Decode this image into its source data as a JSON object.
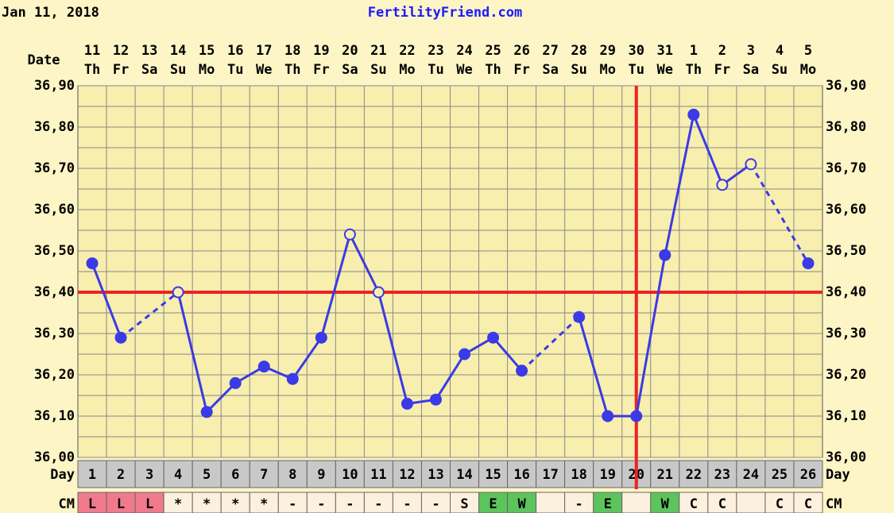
{
  "chart_data": {
    "type": "line",
    "header_date": "Jan 11, 2018",
    "site": "FertilityFriend.com",
    "date_label": "Date",
    "day_label": "Day",
    "cm_label": "CM",
    "dates": [
      "11",
      "12",
      "13",
      "14",
      "15",
      "16",
      "17",
      "18",
      "19",
      "20",
      "21",
      "22",
      "23",
      "24",
      "25",
      "26",
      "27",
      "28",
      "29",
      "30",
      "31",
      "1",
      "2",
      "3",
      "4",
      "5"
    ],
    "weekdays": [
      "Th",
      "Fr",
      "Sa",
      "Su",
      "Mo",
      "Tu",
      "We",
      "Th",
      "Fr",
      "Sa",
      "Su",
      "Mo",
      "Tu",
      "We",
      "Th",
      "Fr",
      "Sa",
      "Su",
      "Mo",
      "Tu",
      "We",
      "Th",
      "Fr",
      "Sa",
      "Su",
      "Mo"
    ],
    "days": [
      1,
      2,
      3,
      4,
      5,
      6,
      7,
      8,
      9,
      10,
      11,
      12,
      13,
      14,
      15,
      16,
      17,
      18,
      19,
      20,
      21,
      22,
      23,
      24,
      25,
      26
    ],
    "cm": [
      "L",
      "L",
      "L",
      "*",
      "*",
      "*",
      "*",
      "-",
      "-",
      "-",
      "-",
      "-",
      "-",
      "S",
      "E",
      "W",
      null,
      "-",
      "E",
      null,
      "W",
      "C",
      "C",
      null,
      "C",
      "C"
    ],
    "cm_colors": {
      "L": "#f07a8c",
      "E": "#5dc35d",
      "W": "#5dc35d"
    },
    "cm_default_color": "#fcf1de",
    "series": [
      {
        "color": "#3a3ae6",
        "values": [
          36.47,
          36.29,
          null,
          36.4,
          36.11,
          36.18,
          36.22,
          36.19,
          36.29,
          36.54,
          36.4,
          36.13,
          36.14,
          36.25,
          36.29,
          36.21,
          null,
          36.34,
          36.1,
          36.1,
          36.49,
          36.83,
          36.66,
          36.71,
          null,
          36.47
        ],
        "markers": [
          "filled",
          "filled",
          null,
          "open",
          "filled",
          "filled",
          "filled",
          "filled",
          "filled",
          "open",
          "open",
          "filled",
          "filled",
          "filled",
          "filled",
          "filled",
          null,
          "filled",
          "filled",
          "filled",
          "filled",
          "filled",
          "open",
          "open",
          null,
          "filled"
        ]
      }
    ],
    "coverline": 36.4,
    "ovulation_day": 20,
    "line_color": "#ee2222",
    "ylim": [
      36.0,
      36.9
    ],
    "yticks": [
      {
        "value": 36.0,
        "label": "36,00"
      },
      {
        "value": 36.1,
        "label": "36,10"
      },
      {
        "value": 36.2,
        "label": "36,20"
      },
      {
        "value": 36.3,
        "label": "36,30"
      },
      {
        "value": 36.4,
        "label": "36,40"
      },
      {
        "value": 36.5,
        "label": "36,50"
      },
      {
        "value": 36.6,
        "label": "36,60"
      },
      {
        "value": 36.7,
        "label": "36,70"
      },
      {
        "value": 36.8,
        "label": "36,80"
      },
      {
        "value": 36.9,
        "label": "36,90"
      }
    ],
    "grid": true
  }
}
